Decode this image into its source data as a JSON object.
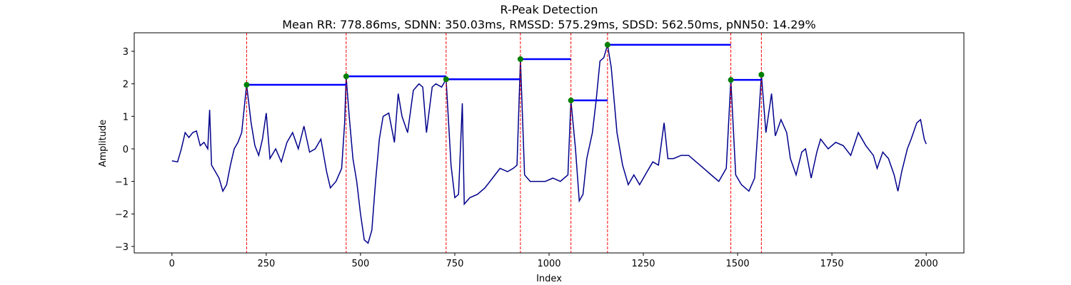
{
  "chart_data": {
    "type": "line",
    "title": "R-Peak Detection",
    "subtitle": "Mean RR: 778.86ms, SDNN: 350.03ms, RMSSD: 575.29ms, SDSD: 562.50ms, pNN50: 14.29%",
    "xlabel": "Index",
    "ylabel": "Amplitude",
    "xlim": [
      -100,
      2100
    ],
    "ylim": [
      -3.2,
      3.57
    ],
    "xticks": [
      0,
      250,
      500,
      750,
      1000,
      1250,
      1500,
      1750,
      2000
    ],
    "yticks": [
      {
        "value": -3,
        "label": "−3"
      },
      {
        "value": -2,
        "label": "−2"
      },
      {
        "value": -1,
        "label": "−1"
      },
      0,
      1,
      2,
      3
    ],
    "signal": {
      "color": "#00008b",
      "x": [
        0,
        15,
        25,
        35,
        45,
        55,
        65,
        75,
        85,
        95,
        100,
        105,
        115,
        125,
        135,
        145,
        155,
        165,
        175,
        185,
        198,
        210,
        220,
        230,
        240,
        250,
        260,
        275,
        290,
        305,
        320,
        335,
        350,
        365,
        380,
        395,
        410,
        420,
        435,
        450,
        458,
        462,
        470,
        480,
        490,
        500,
        510,
        520,
        530,
        540,
        550,
        560,
        575,
        590,
        600,
        610,
        625,
        640,
        655,
        665,
        675,
        690,
        700,
        715,
        727,
        740,
        750,
        760,
        770,
        775,
        790,
        810,
        830,
        850,
        870,
        890,
        905,
        915,
        924,
        935,
        950,
        970,
        990,
        1010,
        1030,
        1050,
        1058,
        1070,
        1080,
        1090,
        1100,
        1115,
        1125,
        1135,
        1145,
        1155,
        1165,
        1180,
        1195,
        1210,
        1225,
        1240,
        1260,
        1275,
        1290,
        1305,
        1315,
        1330,
        1350,
        1370,
        1390,
        1410,
        1430,
        1450,
        1470,
        1482,
        1495,
        1510,
        1530,
        1545,
        1555,
        1563,
        1575,
        1590,
        1600,
        1615,
        1630,
        1640,
        1655,
        1670,
        1680,
        1695,
        1710,
        1720,
        1740,
        1760,
        1780,
        1800,
        1820,
        1840,
        1860,
        1870,
        1885,
        1900,
        1915,
        1925,
        1935,
        1950,
        1960,
        1975,
        1985,
        1995,
        2000
      ],
      "values": [
        -0.37,
        -0.4,
        0.0,
        0.5,
        0.35,
        0.5,
        0.55,
        0.1,
        0.2,
        0.0,
        1.2,
        -0.5,
        -0.7,
        -0.9,
        -1.3,
        -1.1,
        -0.5,
        0.0,
        0.2,
        0.5,
        1.97,
        0.8,
        0.1,
        -0.2,
        0.3,
        1.1,
        -0.3,
        0.0,
        -0.4,
        0.2,
        0.5,
        0.0,
        0.7,
        -0.1,
        0.0,
        0.3,
        -0.7,
        -1.2,
        -1.0,
        -0.6,
        0.8,
        2.23,
        1.0,
        -0.3,
        -1.0,
        -2.0,
        -2.8,
        -2.9,
        -2.5,
        -1.0,
        0.3,
        1.0,
        1.1,
        0.2,
        1.7,
        1.0,
        0.5,
        1.8,
        2.0,
        1.9,
        0.5,
        1.9,
        2.0,
        1.9,
        2.14,
        -0.5,
        -1.5,
        -1.4,
        1.4,
        -1.7,
        -1.5,
        -1.4,
        -1.2,
        -0.9,
        -0.6,
        -0.7,
        -0.6,
        -0.5,
        2.76,
        -0.8,
        -1.0,
        -1.0,
        -1.0,
        -0.9,
        -1.0,
        -0.8,
        1.49,
        0.0,
        -1.6,
        -1.4,
        -0.3,
        0.5,
        1.5,
        2.7,
        2.8,
        3.2,
        2.5,
        0.5,
        -0.5,
        -1.1,
        -0.8,
        -1.1,
        -0.7,
        -0.4,
        -0.5,
        0.8,
        -0.3,
        -0.3,
        -0.2,
        -0.2,
        -0.4,
        -0.6,
        -0.8,
        -1.0,
        -0.6,
        2.12,
        -0.8,
        -1.1,
        -1.3,
        -0.9,
        0.8,
        2.28,
        0.5,
        1.7,
        0.4,
        0.9,
        0.5,
        -0.3,
        -0.8,
        -0.1,
        0.0,
        -0.9,
        -0.1,
        0.3,
        0.0,
        0.2,
        0.1,
        -0.2,
        0.5,
        0.1,
        -0.2,
        -0.6,
        -0.1,
        -0.3,
        -0.8,
        -1.3,
        -0.7,
        0.0,
        0.3,
        0.8,
        0.9,
        0.3,
        0.15
      ]
    },
    "peaks": {
      "color": "#008000",
      "line_color": "#ff0000",
      "interval_color": "#0000ff",
      "x": [
        198,
        462,
        727,
        924,
        1058,
        1155,
        1482,
        1563
      ],
      "values": [
        1.97,
        2.23,
        2.14,
        2.76,
        1.49,
        3.2,
        2.12,
        2.28
      ]
    }
  }
}
